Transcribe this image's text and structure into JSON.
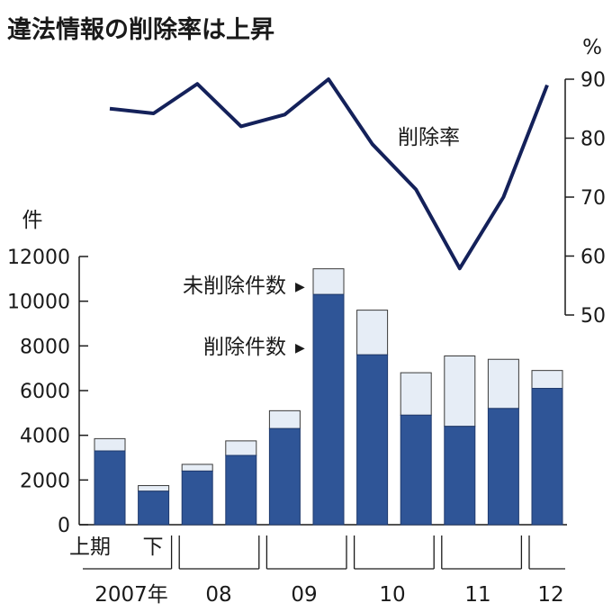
{
  "chart_data": {
    "type": "bar+line",
    "title": "違法情報の削除率は上昇",
    "periods": [
      "2007上期",
      "2007下期",
      "2008上期",
      "2008下期",
      "2009上期",
      "2009下期",
      "2010上期",
      "2010下期",
      "2011上期",
      "2011下期",
      "2012上期"
    ],
    "bar_axis": {
      "unit": "件",
      "ylim": [
        0,
        12000
      ],
      "ticks": [
        "0",
        "2000",
        "4000",
        "6000",
        "8000",
        "10000",
        "12000"
      ]
    },
    "line_axis": {
      "unit": "%",
      "ylim": [
        50,
        90
      ],
      "ticks": [
        "50",
        "60",
        "70",
        "80",
        "90"
      ]
    },
    "series": [
      {
        "name": "削除件数",
        "color": "#2f5597",
        "values": [
          3300,
          1500,
          2400,
          3100,
          4300,
          10300,
          7600,
          4900,
          4400,
          5200,
          6100
        ]
      },
      {
        "name": "未削除件数",
        "color": "#e6edf6",
        "values": [
          550,
          250,
          300,
          650,
          800,
          1150,
          2000,
          1900,
          3150,
          2200,
          800
        ]
      },
      {
        "name": "削除率",
        "color": "#14215a",
        "values": [
          85,
          84.2,
          89.2,
          82,
          84,
          90,
          79,
          71.3,
          57.9,
          70,
          89
        ]
      }
    ],
    "annotations": {
      "unremoved": "未削除件数",
      "removed": "削除件数",
      "rate": "削除率",
      "arrow": "▶"
    },
    "x_sub_labels": {
      "first_half": "上期",
      "second_half": "下"
    },
    "x_year_labels": [
      "2007年",
      "08",
      "09",
      "10",
      "11",
      "12"
    ]
  }
}
